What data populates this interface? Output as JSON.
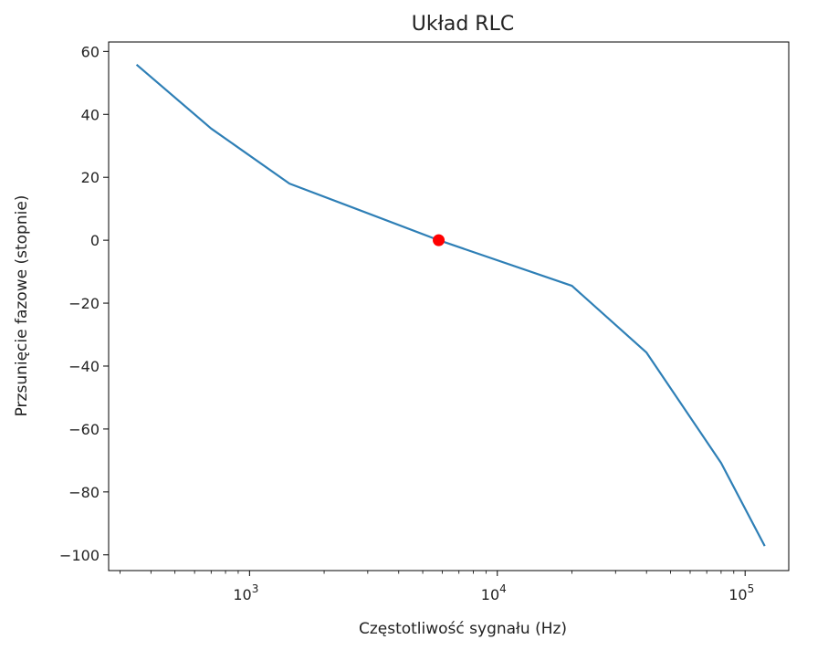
{
  "chart_data": {
    "type": "line",
    "title": "Układ RLC",
    "xlabel": "Częstotliwość sygnału (Hz)",
    "ylabel": "Przsunięcie fazowe (stopnie)",
    "x_scale": "log",
    "xlim": [
      270,
      150000
    ],
    "ylim": [
      -105,
      63
    ],
    "x_ticks": [
      {
        "value": 1000,
        "base": "10",
        "exp": "3"
      },
      {
        "value": 10000,
        "base": "10",
        "exp": "4"
      },
      {
        "value": 100000,
        "base": "10",
        "exp": "5"
      }
    ],
    "y_ticks": [
      {
        "value": 60,
        "label": "60"
      },
      {
        "value": 40,
        "label": "40"
      },
      {
        "value": 20,
        "label": "20"
      },
      {
        "value": 0,
        "label": "0"
      },
      {
        "value": -20,
        "label": "−20"
      },
      {
        "value": -40,
        "label": "−40"
      },
      {
        "value": -60,
        "label": "−60"
      },
      {
        "value": -80,
        "label": "−80"
      },
      {
        "value": -100,
        "label": "−100"
      }
    ],
    "series": [
      {
        "color": "#2e7fb6",
        "x": [
          350,
          700,
          1450,
          5800,
          20000,
          40000,
          80000,
          120000
        ],
        "y": [
          55.8,
          35.5,
          18,
          0,
          -14.5,
          -35.7,
          -70.8,
          -97.2
        ]
      }
    ],
    "marker": {
      "x": 5800,
      "y": 0,
      "color": "#ff0000"
    },
    "grid": false,
    "legend": "none"
  }
}
